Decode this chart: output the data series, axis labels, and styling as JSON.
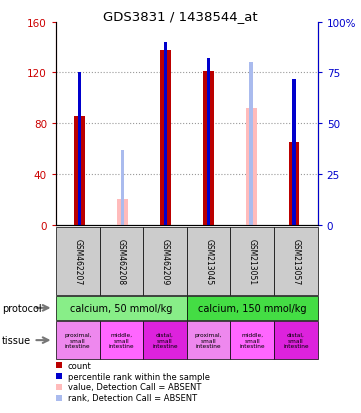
{
  "title": "GDS3831 / 1438544_at",
  "samples": [
    "GSM462207",
    "GSM462208",
    "GSM462209",
    "GSM213045",
    "GSM213051",
    "GSM213057"
  ],
  "count_values": [
    86,
    null,
    138,
    121,
    null,
    65
  ],
  "count_absent_values": [
    null,
    20,
    null,
    null,
    92,
    null
  ],
  "rank_values": [
    75,
    null,
    90,
    82,
    null,
    72
  ],
  "rank_absent_values": [
    null,
    37,
    null,
    null,
    80,
    null
  ],
  "ylim_left": [
    0,
    160
  ],
  "ylim_right": [
    0,
    100
  ],
  "yticks_left": [
    0,
    40,
    80,
    120,
    160
  ],
  "yticks_right": [
    0,
    25,
    50,
    75,
    100
  ],
  "ytick_labels_left": [
    "0",
    "40",
    "80",
    "120",
    "160"
  ],
  "ytick_labels_right": [
    "0",
    "25",
    "50",
    "75",
    "100%"
  ],
  "bar_color_present": "#bb0000",
  "bar_color_absent": "#ffbbbb",
  "rank_color_present": "#0000cc",
  "rank_color_absent": "#aabbee",
  "grid_color": "#888888",
  "protocol_groups": [
    {
      "label": "calcium, 50 mmol/kg",
      "start": 0,
      "end": 3,
      "color": "#88ee88"
    },
    {
      "label": "calcium, 150 mmol/kg",
      "start": 3,
      "end": 6,
      "color": "#44dd44"
    }
  ],
  "tissue_labels": [
    "proximal,\nsmall\nintestine",
    "middle,\nsmall\nintestine",
    "distal,\nsmall\nintestine",
    "proximal,\nsmall\nintestine",
    "middle,\nsmall\nintestine",
    "distal,\nsmall\nintestine"
  ],
  "tissue_colors": [
    "#ee88ee",
    "#ff66ff",
    "#dd22dd",
    "#ee88ee",
    "#ff66ff",
    "#dd22dd"
  ],
  "sample_bg_color": "#cccccc",
  "left_axis_color": "#cc0000",
  "right_axis_color": "#0000cc",
  "bar_width": 0.25,
  "rank_bar_width": 0.08,
  "legend_items": [
    {
      "color": "#bb0000",
      "label": "count"
    },
    {
      "color": "#0000cc",
      "label": "percentile rank within the sample"
    },
    {
      "color": "#ffbbbb",
      "label": "value, Detection Call = ABSENT"
    },
    {
      "color": "#aabbee",
      "label": "rank, Detection Call = ABSENT"
    }
  ]
}
